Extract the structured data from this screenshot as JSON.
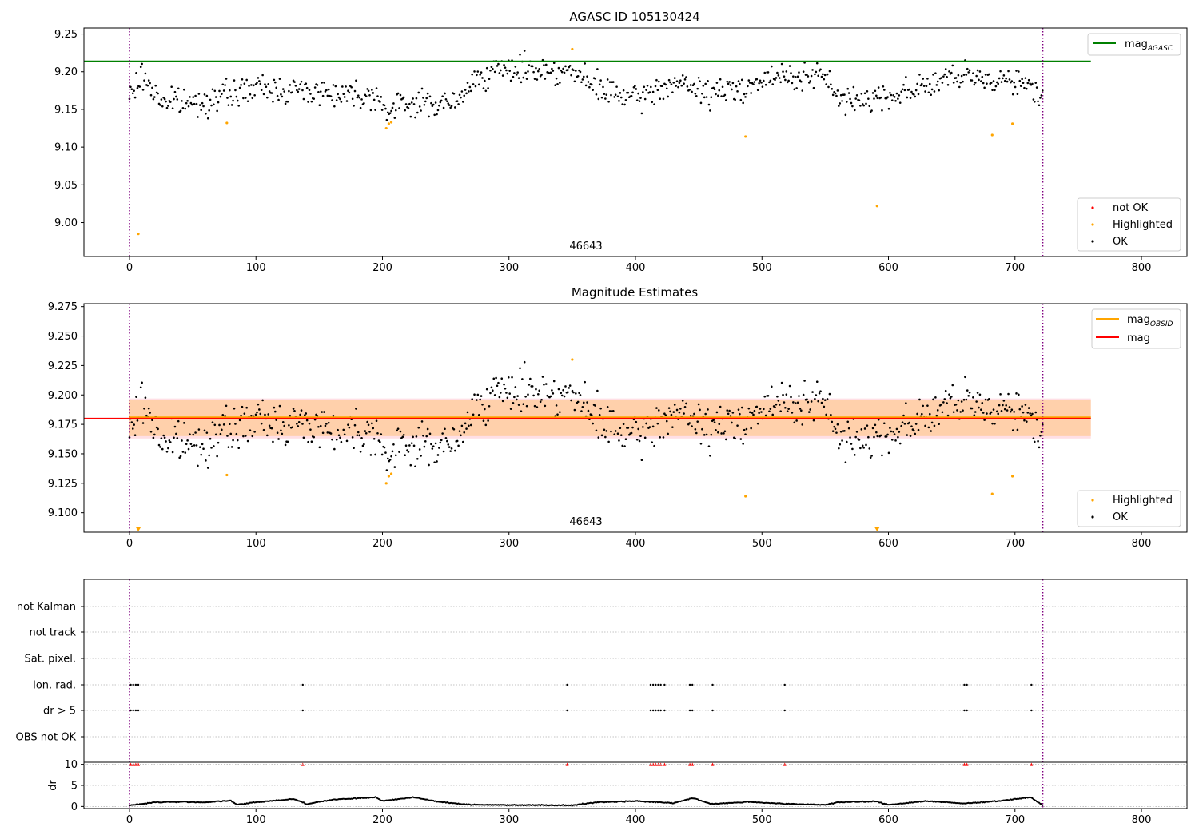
{
  "chart_data": [
    {
      "type": "scatter",
      "title": "AGASC ID 105130424",
      "xlabel": "",
      "ylabel": "",
      "xlim": [
        -36,
        836
      ],
      "ylim": [
        8.955,
        9.258
      ],
      "xticks": [
        "0",
        "100",
        "200",
        "300",
        "400",
        "500",
        "600",
        "700",
        "800"
      ],
      "yticks": [
        "9.00",
        "9.05",
        "9.10",
        "9.15",
        "9.20",
        "9.25"
      ],
      "obsid_label": "46643",
      "vlines": [
        0,
        722
      ],
      "mag_agasc": 9.214,
      "mag_agasc_xrange": [
        -36,
        760
      ],
      "legend_top": [
        {
          "label": "mag",
          "sub": "AGASC",
          "color": "#008000"
        }
      ],
      "legend_bottom": [
        {
          "label": "not OK",
          "color": "#ff0000"
        },
        {
          "label": "Highlighted",
          "color": "#ffa500"
        },
        {
          "label": "OK",
          "color": "#000000"
        }
      ],
      "highlighted_points": [
        [
          7,
          8.985
        ],
        [
          77,
          9.132
        ],
        [
          203,
          9.125
        ],
        [
          205,
          9.131
        ],
        [
          207,
          9.133
        ],
        [
          350,
          9.23
        ],
        [
          487,
          9.114
        ],
        [
          591,
          9.022
        ],
        [
          682,
          9.116
        ],
        [
          698,
          9.131
        ]
      ],
      "trend": [
        [
          0,
          9.165
        ],
        [
          10,
          9.195
        ],
        [
          25,
          9.162
        ],
        [
          50,
          9.158
        ],
        [
          100,
          9.178
        ],
        [
          140,
          9.175
        ],
        [
          200,
          9.168
        ],
        [
          203,
          9.14
        ],
        [
          215,
          9.158
        ],
        [
          260,
          9.158
        ],
        [
          275,
          9.195
        ],
        [
          310,
          9.205
        ],
        [
          350,
          9.2
        ],
        [
          365,
          9.182
        ],
        [
          400,
          9.162
        ],
        [
          430,
          9.186
        ],
        [
          460,
          9.17
        ],
        [
          520,
          9.195
        ],
        [
          555,
          9.19
        ],
        [
          560,
          9.16
        ],
        [
          600,
          9.168
        ],
        [
          650,
          9.192
        ],
        [
          700,
          9.19
        ],
        [
          722,
          9.168
        ]
      ]
    },
    {
      "type": "scatter",
      "title": "Magnitude Estimates",
      "xlabel": "",
      "ylabel": "",
      "xlim": [
        -36,
        836
      ],
      "ylim": [
        9.0835,
        9.2775
      ],
      "xticks": [
        "0",
        "100",
        "200",
        "300",
        "400",
        "500",
        "600",
        "700",
        "800"
      ],
      "yticks": [
        "9.100",
        "9.125",
        "9.150",
        "9.175",
        "9.200",
        "9.225",
        "9.250",
        "9.275"
      ],
      "obsid_label": "46643",
      "vlines": [
        0,
        722
      ],
      "mag": 9.18,
      "mag_band": [
        9.163,
        9.197
      ],
      "mag_obsid": 9.181,
      "mag_obsid_band": [
        9.165,
        9.196
      ],
      "band_xrange": [
        0,
        760
      ],
      "legend_top": [
        {
          "label": "mag",
          "sub": "OBSID",
          "color": "#ffa500"
        },
        {
          "label": "mag",
          "sub": "",
          "color": "#ff0000"
        }
      ],
      "legend_bottom": [
        {
          "label": "Highlighted",
          "color": "#ffa500"
        },
        {
          "label": "OK",
          "color": "#000000"
        }
      ],
      "highlighted_points": [
        [
          77,
          9.132
        ],
        [
          203,
          9.125
        ],
        [
          205,
          9.131
        ],
        [
          207,
          9.133
        ],
        [
          350,
          9.23
        ],
        [
          487,
          9.114
        ],
        [
          682,
          9.116
        ],
        [
          698,
          9.131
        ]
      ],
      "clipped_points": [
        7,
        591
      ]
    },
    {
      "type": "scatter",
      "title": "",
      "xlabel": "",
      "ylabel": "",
      "xlim": [
        -36,
        836
      ],
      "xticks": [
        "0",
        "100",
        "200",
        "300",
        "400",
        "500",
        "600",
        "700",
        "800"
      ],
      "vlines": [
        0,
        722
      ],
      "flag_rows": [
        "not Kalman",
        "not track",
        "Sat. pixel.",
        "Ion. rad.",
        "dr > 5",
        "OBS not OK"
      ],
      "flag_points": {
        "Ion. rad.": [
          1,
          3,
          5,
          7,
          137,
          346,
          412,
          414,
          416,
          418,
          420,
          423,
          443,
          445,
          461,
          518,
          660,
          662,
          713
        ],
        "dr > 5": [
          1,
          3,
          5,
          7,
          137,
          346,
          412,
          414,
          416,
          418,
          420,
          423,
          443,
          445,
          461,
          518,
          660,
          662,
          713
        ]
      },
      "dr_ylabel": "dr",
      "dr_yticks": [
        "0",
        "5",
        "10"
      ],
      "dr_ylim": [
        -0.5,
        10.5
      ],
      "dr_flagged_x": [
        1,
        3,
        5,
        7,
        137,
        346,
        412,
        414,
        416,
        418,
        420,
        423,
        443,
        445,
        461,
        518,
        660,
        662,
        713
      ],
      "dr_trend": [
        [
          0,
          0.3
        ],
        [
          10,
          0.6
        ],
        [
          20,
          1.0
        ],
        [
          40,
          1.1
        ],
        [
          60,
          1.0
        ],
        [
          80,
          1.4
        ],
        [
          85,
          0.4
        ],
        [
          100,
          1.0
        ],
        [
          130,
          1.8
        ],
        [
          140,
          0.6
        ],
        [
          160,
          1.6
        ],
        [
          195,
          2.2
        ],
        [
          200,
          1.3
        ],
        [
          225,
          2.2
        ],
        [
          245,
          1.1
        ],
        [
          270,
          0.4
        ],
        [
          350,
          0.3
        ],
        [
          370,
          1.0
        ],
        [
          400,
          1.3
        ],
        [
          430,
          0.8
        ],
        [
          445,
          2.0
        ],
        [
          460,
          0.6
        ],
        [
          490,
          1.1
        ],
        [
          520,
          0.6
        ],
        [
          550,
          0.4
        ],
        [
          560,
          1.0
        ],
        [
          590,
          1.2
        ],
        [
          600,
          0.4
        ],
        [
          630,
          1.3
        ],
        [
          660,
          0.7
        ],
        [
          690,
          1.4
        ],
        [
          712,
          2.2
        ],
        [
          722,
          0.3
        ]
      ]
    }
  ]
}
